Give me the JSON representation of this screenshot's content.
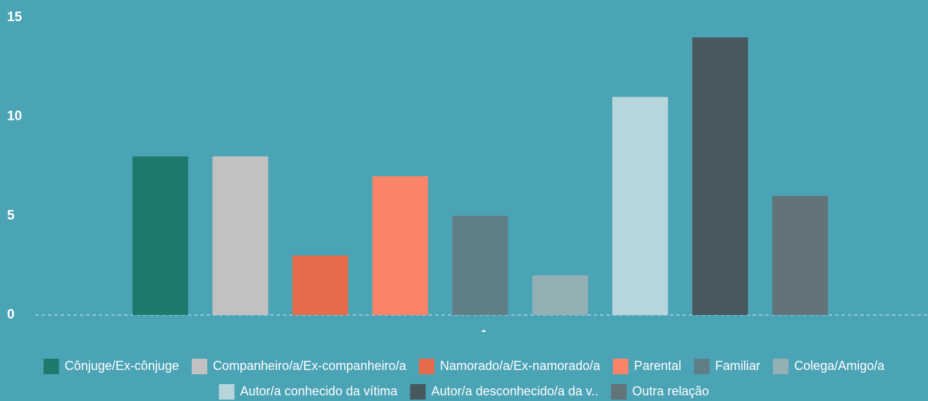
{
  "chart_data": {
    "type": "bar",
    "categories": [
      "-"
    ],
    "ylim": [
      0,
      15
    ],
    "yticks": [
      0,
      5,
      10,
      15
    ],
    "series": [
      {
        "name": "Cônjuge/Ex-cônjuge",
        "color": "#1f7a6e",
        "values": [
          8
        ]
      },
      {
        "name": "Companheiro/a/Ex-companheiro/a",
        "color": "#c1c1c1",
        "values": [
          8
        ]
      },
      {
        "name": "Namorado/a/Ex-namorado/a",
        "color": "#e56b4a",
        "values": [
          3
        ]
      },
      {
        "name": "Parental",
        "color": "#fa8467",
        "values": [
          7
        ]
      },
      {
        "name": "Familiar",
        "color": "#5f7f86",
        "values": [
          5
        ]
      },
      {
        "name": "Colega/Amigo/a",
        "color": "#93b0b5",
        "values": [
          2
        ]
      },
      {
        "name": "Autor/a conhecido da vítima",
        "color": "#b7d6dc",
        "values": [
          11
        ]
      },
      {
        "name": "Autor/a desconhecido/a da v..",
        "color": "#47585e",
        "values": [
          14
        ]
      },
      {
        "name": "Outra relação",
        "color": "#627479",
        "values": [
          6
        ]
      }
    ]
  }
}
